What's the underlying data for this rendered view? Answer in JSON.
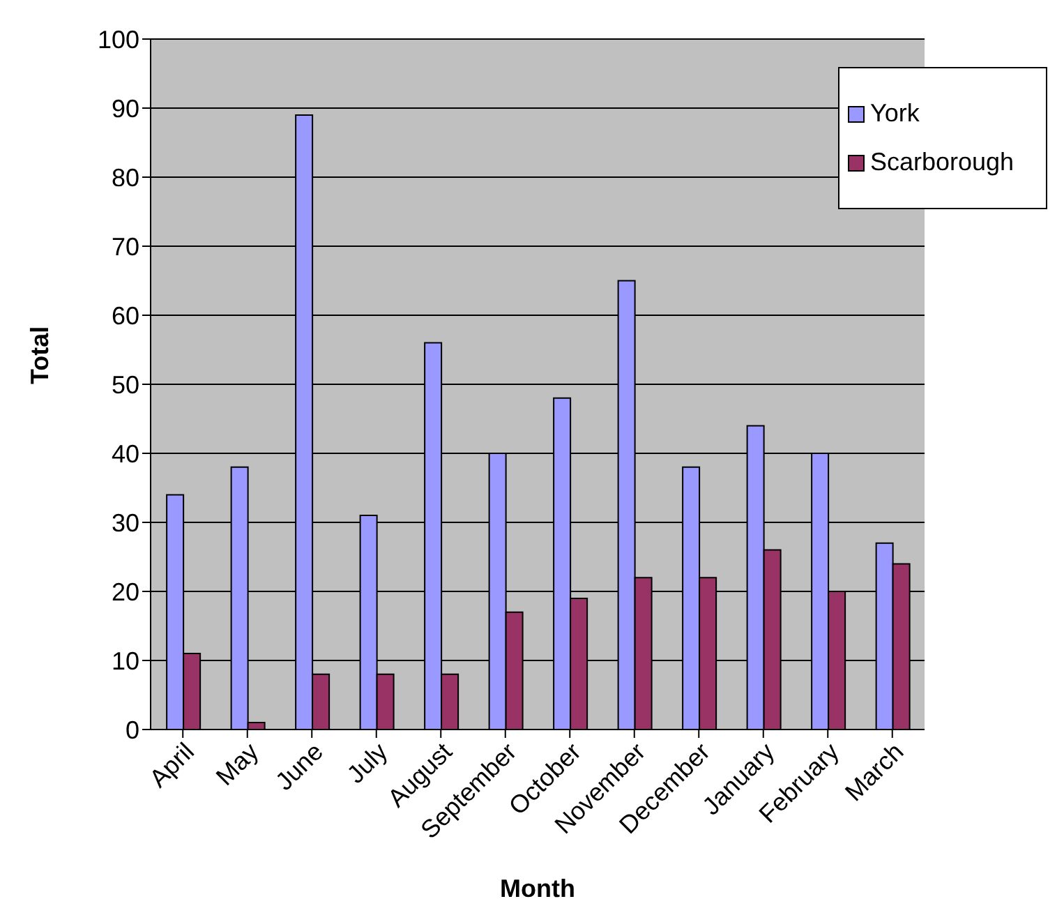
{
  "chart_data": {
    "type": "bar",
    "xlabel": "Month",
    "ylabel": "Total",
    "categories": [
      "April",
      "May",
      "June",
      "July",
      "August",
      "September",
      "October",
      "November",
      "December",
      "January",
      "February",
      "March"
    ],
    "series": [
      {
        "name": "York",
        "color": "#9999ff",
        "values": [
          34,
          38,
          89,
          31,
          56,
          40,
          48,
          65,
          38,
          44,
          40,
          27
        ]
      },
      {
        "name": "Scarborough",
        "color": "#993366",
        "values": [
          11,
          1,
          8,
          8,
          8,
          17,
          19,
          22,
          22,
          26,
          20,
          24
        ]
      }
    ],
    "ylim": [
      0,
      100
    ],
    "yticks": [
      0,
      10,
      20,
      30,
      40,
      50,
      60,
      70,
      80,
      90,
      100
    ],
    "grid": "y",
    "legend": "top right"
  }
}
